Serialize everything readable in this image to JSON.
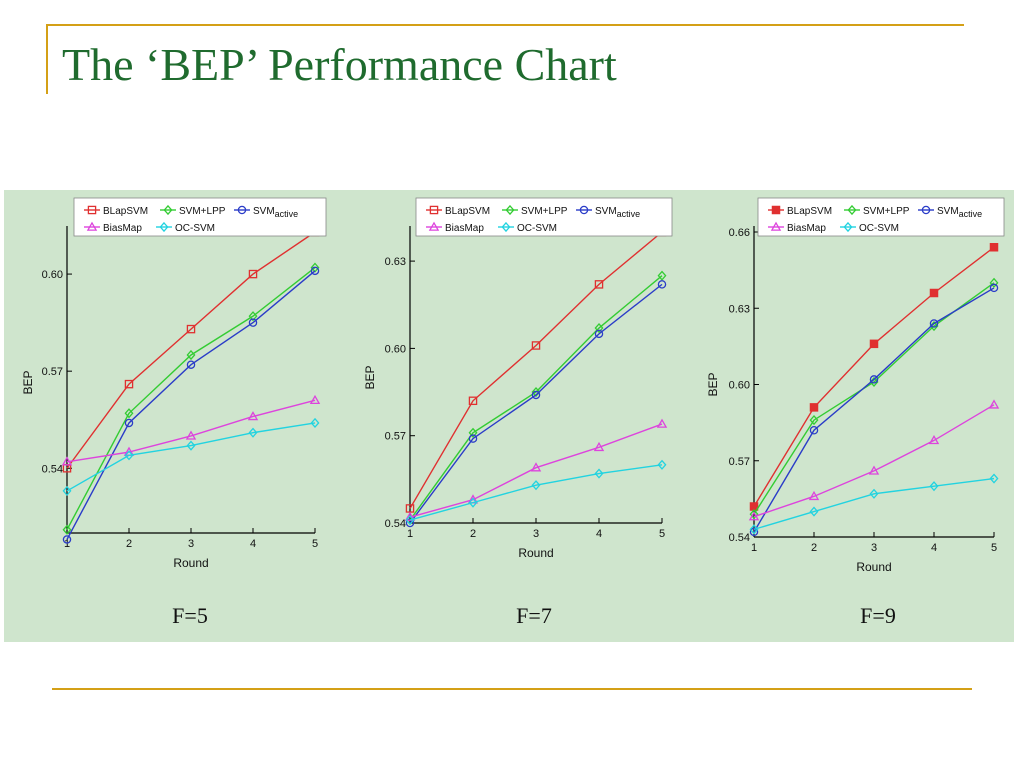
{
  "slide": {
    "title": "The ‘BEP’ Performance Chart"
  },
  "colors": {
    "title": "#1f6b2e",
    "accent_rule": "#d4a017",
    "panel_background": "#cfe5cd"
  },
  "chart_data": [
    {
      "type": "line",
      "caption": "F=5",
      "xlabel": "Round",
      "ylabel": "BEP",
      "x": [
        1,
        2,
        3,
        4,
        5
      ],
      "xlim": [
        1,
        5
      ],
      "ylim": [
        0.52,
        0.613
      ],
      "yticks": [
        "0.54",
        "0.57",
        "0.60"
      ],
      "yticks_values": [
        0.54,
        0.57,
        0.6
      ],
      "grid": false,
      "legend": "top-right",
      "series": [
        {
          "name": "BLapSVM",
          "color": "#e03030",
          "marker": "square",
          "values": [
            0.54,
            0.566,
            0.583,
            0.6,
            0.613
          ]
        },
        {
          "name": "SVM+LPP",
          "color": "#33cc33",
          "marker": "diamond",
          "values": [
            0.521,
            0.557,
            0.575,
            0.587,
            0.602
          ]
        },
        {
          "name": "SVM",
          "name_sub": "active",
          "color": "#2a3cc8",
          "marker": "circle",
          "values": [
            0.518,
            0.554,
            0.572,
            0.585,
            0.601
          ]
        },
        {
          "name": "BiasMap",
          "color": "#dd44dd",
          "marker": "triangle",
          "values": [
            0.542,
            0.545,
            0.55,
            0.556,
            0.561
          ]
        },
        {
          "name": "OC-SVM",
          "color": "#22d3e0",
          "marker": "diamond",
          "values": [
            0.533,
            0.544,
            0.547,
            0.551,
            0.554
          ]
        }
      ]
    },
    {
      "type": "line",
      "caption": "F=7",
      "xlabel": "Round",
      "ylabel": "BEP",
      "x": [
        1,
        2,
        3,
        4,
        5
      ],
      "xlim": [
        1,
        5
      ],
      "ylim": [
        0.54,
        0.64
      ],
      "yticks": [
        "0.54",
        "0.57",
        "0.60",
        "0.63"
      ],
      "yticks_values": [
        0.54,
        0.57,
        0.6,
        0.63
      ],
      "grid": false,
      "legend": "top-right",
      "series": [
        {
          "name": "BLapSVM",
          "color": "#e03030",
          "marker": "square",
          "values": [
            0.545,
            0.582,
            0.601,
            0.622,
            0.64
          ]
        },
        {
          "name": "SVM+LPP",
          "color": "#33cc33",
          "marker": "diamond",
          "values": [
            0.541,
            0.571,
            0.585,
            0.607,
            0.625
          ]
        },
        {
          "name": "SVM",
          "name_sub": "active",
          "color": "#2a3cc8",
          "marker": "circle",
          "values": [
            0.54,
            0.569,
            0.584,
            0.605,
            0.622
          ]
        },
        {
          "name": "BiasMap",
          "color": "#dd44dd",
          "marker": "triangle",
          "values": [
            0.542,
            0.548,
            0.559,
            0.566,
            0.574
          ]
        },
        {
          "name": "OC-SVM",
          "color": "#22d3e0",
          "marker": "diamond",
          "values": [
            0.541,
            0.547,
            0.553,
            0.557,
            0.56
          ]
        }
      ]
    },
    {
      "type": "line",
      "caption": "F=9",
      "xlabel": "Round",
      "ylabel": "BEP",
      "x": [
        1,
        2,
        3,
        4,
        5
      ],
      "xlim": [
        1,
        5
      ],
      "ylim": [
        0.54,
        0.66
      ],
      "yticks": [
        "0.54",
        "0.57",
        "0.60",
        "0.63",
        "0.66"
      ],
      "yticks_values": [
        0.54,
        0.57,
        0.6,
        0.63,
        0.66
      ],
      "grid": false,
      "legend": "top-right",
      "series": [
        {
          "name": "BLapSVM",
          "color": "#e03030",
          "marker": "square-filled",
          "values": [
            0.552,
            0.591,
            0.616,
            0.636,
            0.654
          ]
        },
        {
          "name": "SVM+LPP",
          "color": "#33cc33",
          "marker": "diamond",
          "values": [
            0.549,
            0.586,
            0.601,
            0.623,
            0.64
          ]
        },
        {
          "name": "SVM",
          "name_sub": "active",
          "color": "#2a3cc8",
          "marker": "circle",
          "values": [
            0.542,
            0.582,
            0.602,
            0.624,
            0.638
          ]
        },
        {
          "name": "BiasMap",
          "color": "#dd44dd",
          "marker": "triangle",
          "values": [
            0.548,
            0.556,
            0.566,
            0.578,
            0.592
          ]
        },
        {
          "name": "OC-SVM",
          "color": "#22d3e0",
          "marker": "diamond",
          "values": [
            0.543,
            0.55,
            0.557,
            0.56,
            0.563
          ]
        }
      ]
    }
  ]
}
